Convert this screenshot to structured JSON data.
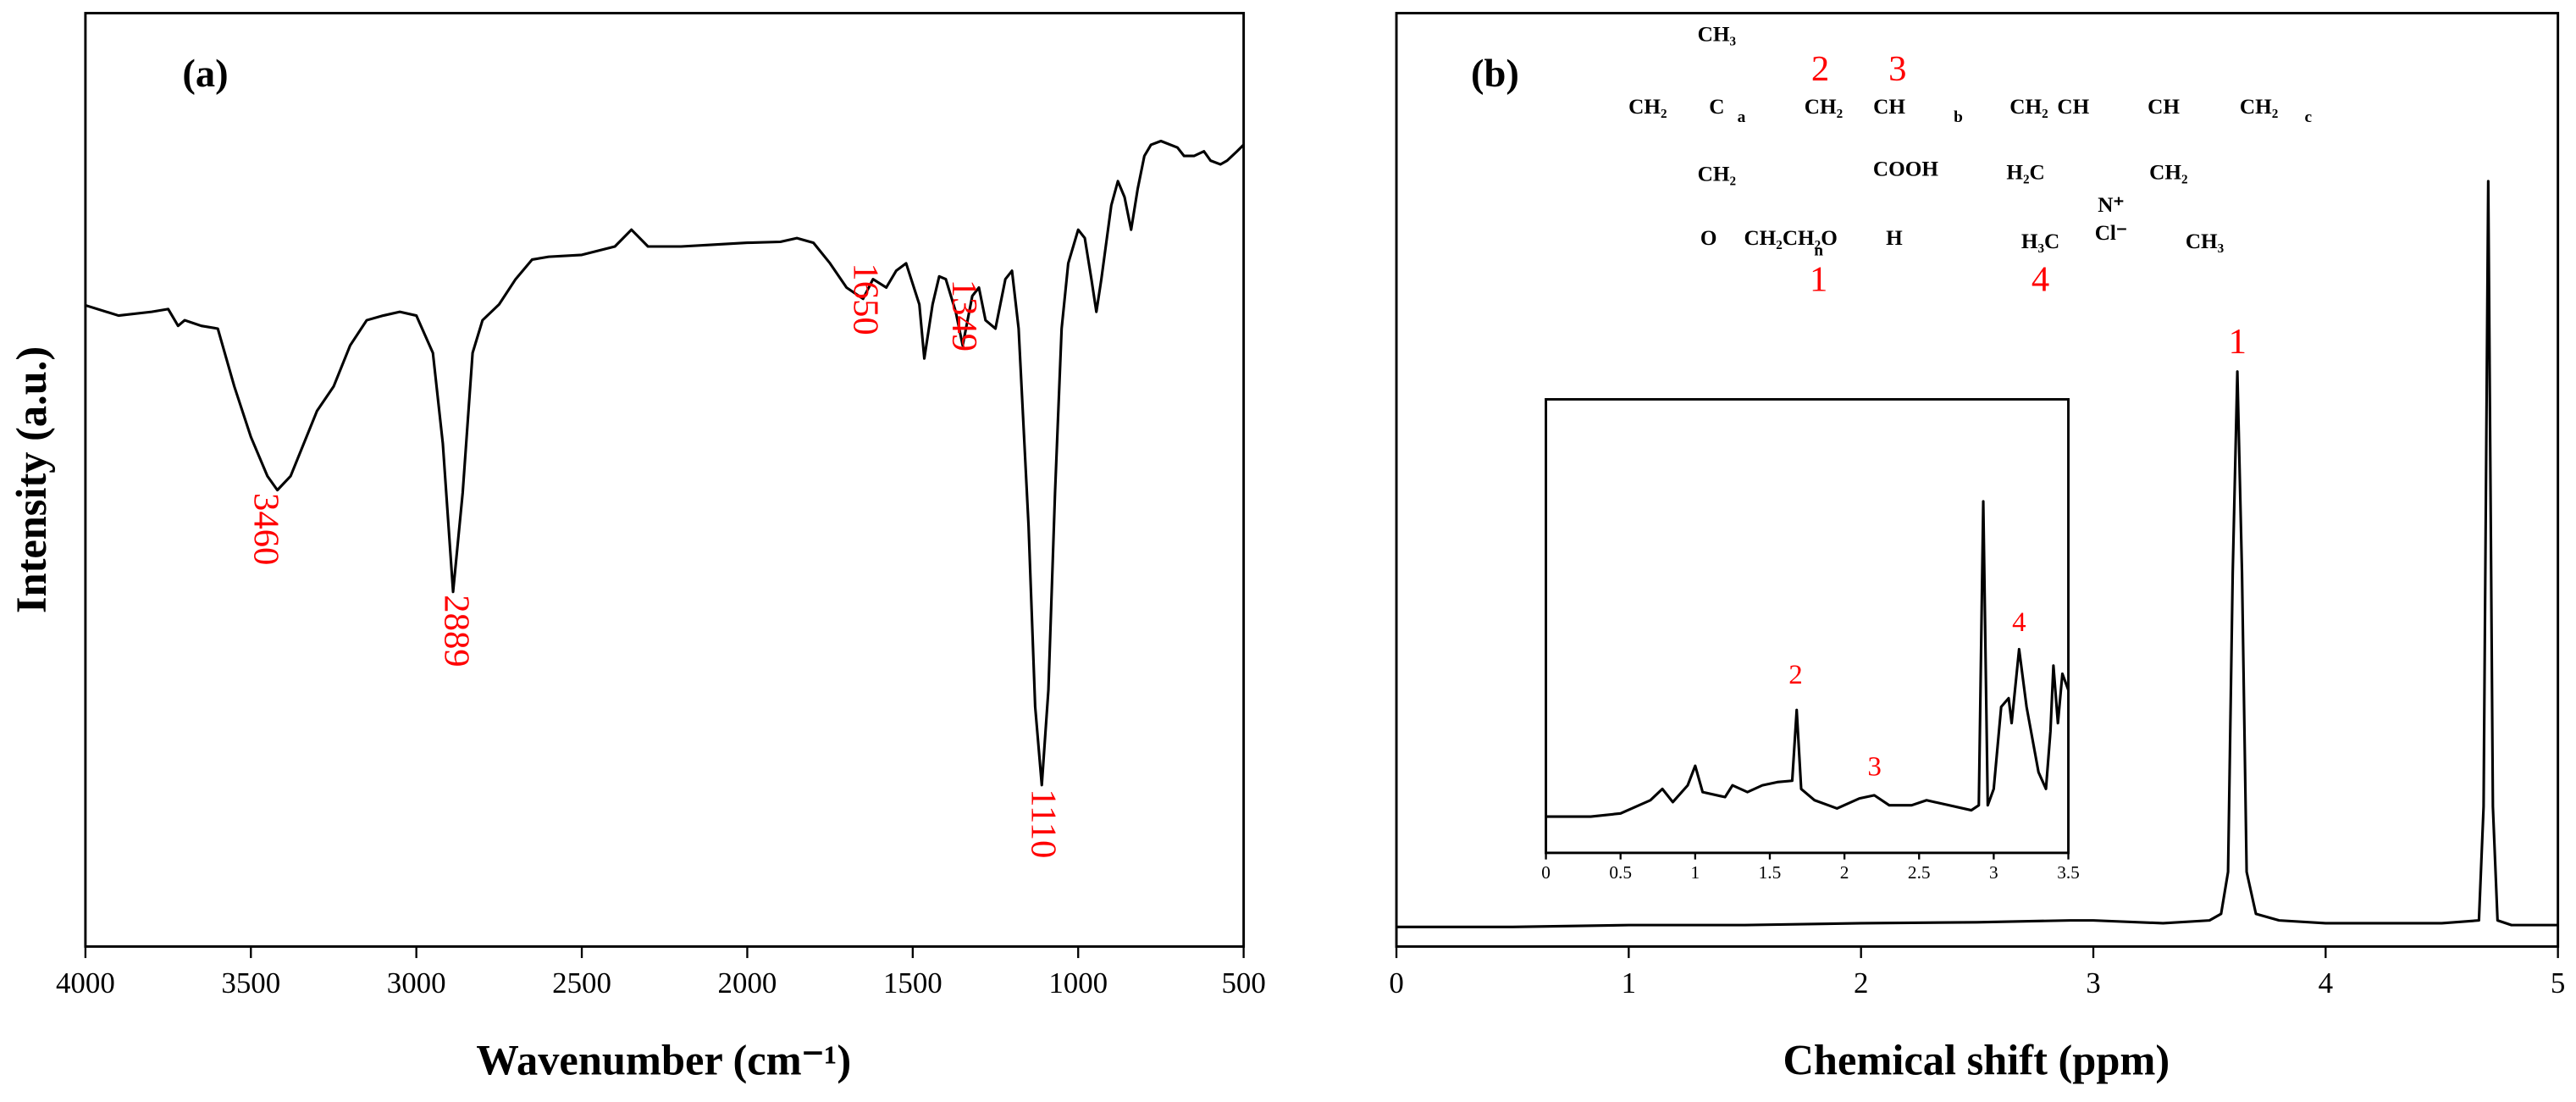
{
  "chart_data": [
    {
      "type": "line",
      "title": "(a)",
      "xlabel": "Wavenumber (cm⁻¹)",
      "ylabel": "Intensity (a.u.)",
      "color": "#000000",
      "x": [
        4000,
        3900,
        3800,
        3750,
        3720,
        3700,
        3650,
        3600,
        3550,
        3500,
        3450,
        3420,
        3380,
        3300,
        3250,
        3200,
        3150,
        3100,
        3050,
        3000,
        2950,
        2920,
        2889,
        2860,
        2830,
        2800,
        2750,
        2700,
        2650,
        2600,
        2500,
        2400,
        2350,
        2300,
        2200,
        2100,
        2000,
        1900,
        1850,
        1800,
        1750,
        1700,
        1650,
        1620,
        1580,
        1550,
        1520,
        1480,
        1465,
        1440,
        1420,
        1400,
        1370,
        1349,
        1320,
        1300,
        1280,
        1250,
        1220,
        1200,
        1180,
        1150,
        1130,
        1110,
        1090,
        1070,
        1050,
        1030,
        1000,
        980,
        960,
        945,
        930,
        900,
        880,
        860,
        840,
        820,
        800,
        780,
        750,
        700,
        680,
        650,
        620,
        600,
        570,
        550,
        520,
        500
      ],
      "values": [
        68.7,
        67.6,
        68.0,
        68.3,
        66.5,
        67.1,
        66.5,
        66.2,
        60.0,
        54.6,
        50.4,
        48.9,
        50.4,
        57.4,
        60.0,
        64.4,
        67.1,
        67.6,
        68.0,
        67.6,
        63.6,
        53.9,
        38.0,
        48.6,
        63.6,
        67.1,
        68.8,
        71.5,
        73.6,
        73.9,
        74.1,
        75.0,
        76.8,
        75.0,
        75.0,
        75.2,
        75.4,
        75.5,
        75.9,
        75.4,
        73.2,
        70.6,
        69.4,
        71.5,
        70.6,
        72.4,
        73.2,
        68.8,
        63.0,
        68.8,
        71.8,
        71.5,
        68.0,
        64.4,
        69.7,
        70.6,
        67.1,
        66.2,
        71.5,
        72.4,
        66.2,
        45.1,
        25.7,
        17.3,
        27.5,
        48.6,
        66.2,
        73.2,
        76.8,
        75.9,
        71.5,
        68.0,
        71.5,
        79.4,
        82.0,
        80.3,
        76.8,
        81.2,
        84.7,
        85.9,
        86.3,
        85.6,
        84.7,
        84.7,
        85.2,
        84.2,
        83.8,
        84.2,
        85.2,
        85.9
      ],
      "xlim": [
        4000,
        500
      ],
      "ylim": [
        0,
        100
      ],
      "xticks": [
        4000,
        3500,
        3000,
        2500,
        2000,
        1500,
        1000,
        500
      ],
      "annotations": [
        "3460",
        "2889",
        "1650",
        "1349",
        "1110"
      ],
      "annotation_color": "#ff0000"
    },
    {
      "type": "line",
      "title": "(b)",
      "xlabel": "Chemical shift (ppm)",
      "color": "#000000",
      "x": [
        0,
        0.5,
        1,
        1.5,
        2,
        2.5,
        2.9,
        3,
        3.3,
        3.5,
        3.55,
        3.58,
        3.6,
        3.62,
        3.64,
        3.66,
        3.7,
        3.8,
        4,
        4.5,
        4.66,
        4.68,
        4.7,
        4.72,
        4.74,
        4.8,
        5
      ],
      "values": [
        2.1,
        2.1,
        2.3,
        2.3,
        2.5,
        2.6,
        2.8,
        2.8,
        2.5,
        2.8,
        3.5,
        8,
        40,
        61.6,
        40,
        8,
        3.5,
        2.8,
        2.5,
        2.5,
        2.8,
        15,
        82.0,
        15,
        2.8,
        2.3,
        2.3
      ],
      "xlim": [
        0,
        5
      ],
      "ylim": [
        0,
        100
      ],
      "xticks": [
        0,
        1,
        2,
        3,
        4,
        5
      ],
      "annotations": [
        "1"
      ],
      "annotation_color": "#ff0000"
    },
    {
      "type": "line",
      "color": "#000000",
      "x": [
        0,
        0.3,
        0.5,
        0.7,
        0.78,
        0.85,
        0.95,
        1.0,
        1.05,
        1.2,
        1.25,
        1.35,
        1.45,
        1.55,
        1.65,
        1.68,
        1.71,
        1.8,
        1.95,
        2.1,
        2.2,
        2.3,
        2.45,
        2.55,
        2.7,
        2.85,
        2.9,
        2.93,
        2.96,
        3.0,
        3.05,
        3.1,
        3.12,
        3.17,
        3.22,
        3.3,
        3.35,
        3.38,
        3.4,
        3.43,
        3.46,
        3.5
      ],
      "values": [
        8.0,
        8.0,
        8.7,
        11.6,
        14.1,
        11.2,
        14.9,
        19.2,
        13.4,
        12.3,
        14.9,
        13.4,
        14.9,
        15.6,
        15.9,
        31.5,
        14.1,
        11.6,
        9.8,
        12.0,
        12.7,
        10.5,
        10.5,
        11.6,
        10.5,
        9.4,
        10.5,
        77.5,
        10.5,
        14.1,
        32.2,
        34.1,
        28.6,
        44.9,
        32.2,
        17.8,
        14.1,
        26.8,
        41.3,
        28.6,
        39.5,
        35.9
      ],
      "xlim": [
        0,
        3.5
      ],
      "ylim": [
        0,
        100
      ],
      "xticks": [
        0,
        0.5,
        1,
        1.5,
        2,
        2.5,
        3,
        3.5
      ],
      "annotations": [
        "2",
        "3",
        "4"
      ],
      "annotation_color": "#ff0000"
    }
  ],
  "structure": {
    "texts": [
      "CH₃",
      "CH₂",
      "C",
      "a",
      "CH₂",
      "CH",
      "b",
      "CH₂",
      "CH",
      "CH",
      "CH₂",
      "c",
      "CH₂",
      "O",
      "CH₂CH₂O",
      "n",
      "H",
      "COOH",
      "H₂C",
      "CH₂",
      "N⁺",
      "Cl⁻",
      "H₃C",
      "CH₃"
    ],
    "numbers": [
      "2",
      "3",
      "1",
      "4"
    ],
    "number_color": "#ff0000"
  }
}
